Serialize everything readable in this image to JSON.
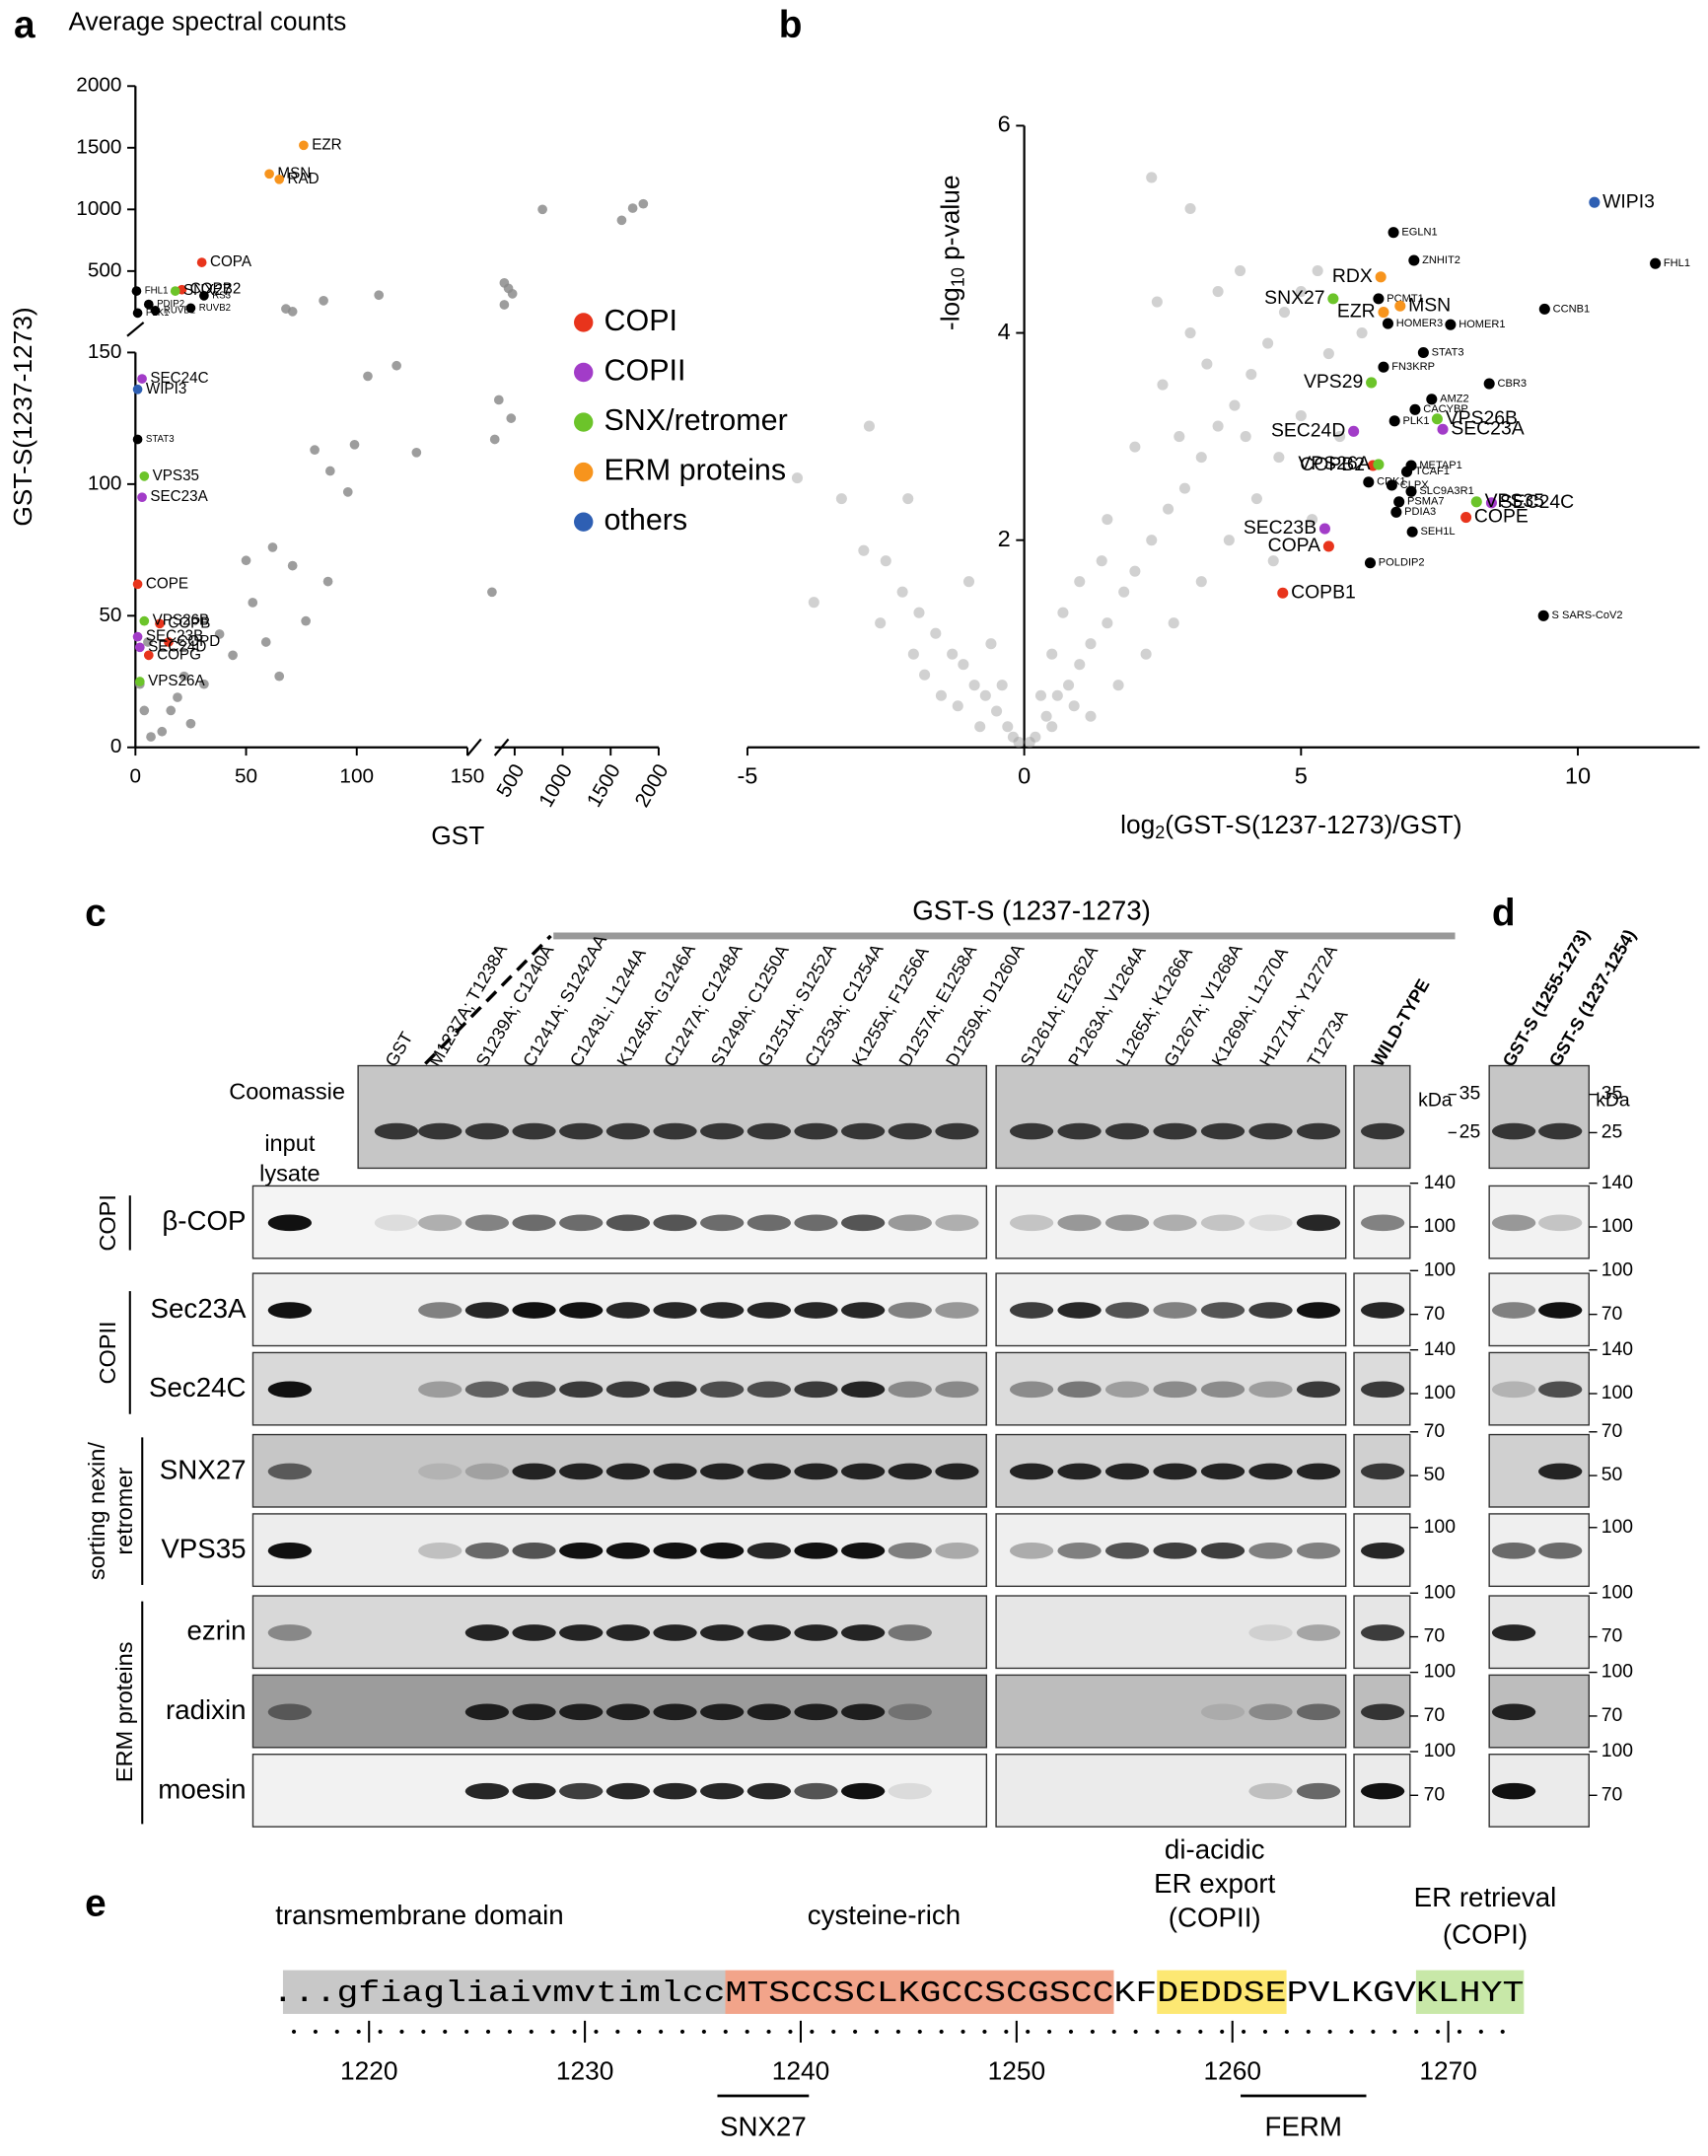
{
  "panel_letters": [
    "a",
    "b",
    "c",
    "d",
    "e"
  ],
  "chart_data": [
    {
      "type": "scatter",
      "title": "Average spectral counts",
      "xlabel": "GST",
      "ylabel": "GST-S(1237-1273)",
      "xlim": [
        0,
        2000
      ],
      "ylim": [
        0,
        2000
      ],
      "axis_break": 150,
      "xticks": [
        0,
        50,
        100,
        150,
        500,
        1000,
        1500,
        2000
      ],
      "yticks": [
        0,
        50,
        100,
        150,
        500,
        1000,
        1500,
        2000
      ],
      "legend": "right",
      "series": [
        {
          "color": "#8c8c8c",
          "x": [
            790,
            1615,
            1840,
            1730,
            392,
            435,
            477,
            392,
            68,
            71,
            85,
            110,
            118,
            335,
            463,
            293,
            264,
            105,
            81,
            127,
            99,
            88,
            62,
            53,
            65,
            44,
            38,
            31,
            19,
            25,
            12,
            7,
            16,
            50,
            71,
            96,
            59,
            77,
            87,
            22,
            5.6,
            4,
            2
          ],
          "values": [
            1000,
            912,
            1045,
            1010,
            404,
            360,
            316,
            227,
            194,
            172,
            260,
            305,
            145,
            132,
            125,
            117,
            59,
            141,
            113,
            112,
            115,
            105,
            76,
            55,
            27,
            35,
            43,
            24,
            19,
            9,
            6,
            4,
            14,
            71,
            69,
            97,
            40,
            48,
            63,
            27,
            40,
            14,
            24
          ]
        },
        {
          "color": "#000000",
          "labels": [
            "FHL1",
            "PDIP2",
            "PLK1",
            "RS3",
            "RUVB2",
            "RUVB1",
            "STAT3"
          ],
          "x": [
            0.5,
            6,
            1,
            31,
            25,
            9,
            1
          ],
          "values": [
            338,
            230,
            160,
            300,
            200,
            180,
            117
          ]
        },
        {
          "name": "COPI",
          "color": "#e8341c",
          "labels": [
            "COPA",
            "COPB2",
            "COPE",
            "COPB",
            "COPD",
            "COPG"
          ],
          "x": [
            30,
            21,
            1,
            11,
            15,
            6
          ],
          "values": [
            570,
            349,
            62,
            47,
            40,
            35
          ]
        },
        {
          "name": "COPII",
          "color": "#a23cc8",
          "labels": [
            "SEC24C",
            "SEC23A",
            "SEC23B",
            "SEC24D"
          ],
          "x": [
            3,
            3,
            1,
            2
          ],
          "values": [
            140,
            95,
            42,
            38
          ]
        },
        {
          "name": "SNX/retromer",
          "color": "#6cc42a",
          "labels": [
            "SNX27",
            "VPS35",
            "VPS26B",
            "VPS26A"
          ],
          "x": [
            18,
            4,
            4,
            2
          ],
          "values": [
            338,
            103,
            48,
            25
          ]
        },
        {
          "name": "ERM proteins",
          "color": "#f7941d",
          "labels": [
            "EZR",
            "MSN",
            "RAD"
          ],
          "x": [
            76,
            60.5,
            65
          ],
          "values": [
            1520,
            1288,
            1244
          ]
        },
        {
          "name": "others",
          "color": "#2e5fb3",
          "labels": [
            "WIPI3"
          ],
          "x": [
            1
          ],
          "values": [
            136
          ]
        }
      ]
    },
    {
      "type": "scatter",
      "xlabel": [
        "log",
        "2",
        "(GST-S(1237-1273)/GST)"
      ],
      "ylabel": [
        "-log",
        "10",
        " p-value"
      ],
      "xlim": [
        -5,
        12.2
      ],
      "ylim": [
        0,
        6
      ],
      "xticks": [
        -5,
        0,
        5,
        10
      ],
      "yticks": [
        2,
        4,
        6
      ],
      "series": [
        {
          "color": "#9a9a9a",
          "x": [
            -4.1,
            -3.3,
            -2.9,
            -2.5,
            -2.2,
            -1.9,
            -1.6,
            -1.3,
            -1.1,
            -0.9,
            -0.7,
            -0.5,
            -0.3,
            -0.2,
            -1.5,
            -2.0,
            -0.8,
            -1.2,
            -2.6,
            -1.8,
            -3.8,
            -2.1,
            -0.6,
            -0.4,
            -1.0,
            -2.8,
            0.2,
            0.4,
            0.6,
            0.8,
            1.0,
            1.2,
            1.5,
            1.8,
            2.0,
            2.3,
            2.6,
            2.9,
            3.2,
            3.5,
            3.8,
            4.1,
            4.4,
            4.7,
            5.0,
            5.3,
            2.3,
            3.0,
            1.2,
            1.7,
            2.2,
            2.7,
            3.2,
            3.7,
            4.2,
            4.6,
            5.0,
            1.0,
            1.5,
            2.0,
            2.5,
            3.0,
            3.5,
            0.5,
            0.7,
            0.3,
            5.5,
            4.0,
            3.3,
            2.8,
            6.1,
            5.7,
            5.2,
            4.5,
            1.4,
            0.9,
            0.5,
            0.1,
            -0.1,
            3.9,
            2.4
          ],
          "values": [
            2.6,
            2.4,
            1.9,
            1.8,
            1.5,
            1.3,
            1.1,
            0.9,
            0.8,
            0.6,
            0.5,
            0.35,
            0.2,
            0.1,
            0.5,
            0.9,
            0.2,
            0.4,
            1.2,
            0.7,
            1.4,
            2.4,
            1.0,
            0.6,
            1.6,
            3.1,
            0.1,
            0.3,
            0.5,
            0.6,
            0.8,
            1.0,
            1.2,
            1.5,
            1.7,
            2.0,
            2.3,
            2.5,
            2.8,
            3.1,
            3.3,
            3.6,
            3.9,
            4.2,
            4.4,
            4.6,
            5.5,
            5.2,
            0.3,
            0.6,
            0.9,
            1.2,
            1.6,
            2.0,
            2.4,
            2.8,
            3.2,
            1.6,
            2.2,
            2.9,
            3.5,
            4.0,
            4.4,
            0.9,
            1.3,
            0.5,
            3.8,
            3.0,
            3.7,
            3.0,
            4.0,
            3.0,
            2.2,
            1.8,
            1.8,
            0.4,
            0.2,
            0.05,
            0.05,
            4.6,
            4.3
          ]
        },
        {
          "color": "#000000",
          "labels": [
            "EGLN1",
            "ZNHIT2",
            "PCMT1",
            "HOMER3",
            "HOMER1",
            "STAT3",
            "FN3KRP",
            "CBR3",
            "AMZ2",
            "CACYBP",
            "PLK1",
            "METAP1",
            "TCAF1",
            "CDK1",
            "CLPX",
            "SLC9A3R1",
            "PSMA7",
            "PDIA3",
            "SEH1L",
            "POLDIP2",
            "FHL1",
            "CCNB1",
            "S SARS-CoV2"
          ],
          "x": [
            6.67,
            7.04,
            6.4,
            6.57,
            7.7,
            7.21,
            6.49,
            8.4,
            7.36,
            7.06,
            6.69,
            6.99,
            6.91,
            6.22,
            6.64,
            6.99,
            6.77,
            6.72,
            7.01,
            6.25,
            11.4,
            9.4,
            9.38
          ],
          "values": [
            4.97,
            4.7,
            4.33,
            4.09,
            4.08,
            3.81,
            3.67,
            3.51,
            3.36,
            3.26,
            3.15,
            2.72,
            2.66,
            2.56,
            2.53,
            2.47,
            2.37,
            2.27,
            2.08,
            1.78,
            4.67,
            4.23,
            1.27
          ]
        },
        {
          "color": "#e8341c",
          "labels": [
            "COPB2",
            "COPE",
            "COPA",
            "COPB1"
          ],
          "x": [
            6.3,
            7.98,
            5.5,
            4.67
          ],
          "values": [
            2.72,
            2.22,
            1.94,
            1.49
          ]
        },
        {
          "color": "#a23cc8",
          "labels": [
            "SEC24D",
            "SEC23A",
            "SEC24C",
            "SEC23B"
          ],
          "x": [
            5.95,
            7.56,
            8.44,
            5.43
          ],
          "values": [
            3.05,
            3.07,
            2.36,
            2.11
          ]
        },
        {
          "color": "#6cc42a",
          "labels": [
            "SNX27",
            "VPS29",
            "VPS26B",
            "VPS26A",
            "VPS35"
          ],
          "x": [
            5.58,
            6.27,
            7.46,
            6.4,
            8.17
          ],
          "values": [
            4.33,
            3.52,
            3.17,
            2.73,
            2.37
          ]
        },
        {
          "color": "#f7941d",
          "labels": [
            "RDX",
            "MSN",
            "EZR"
          ],
          "x": [
            6.44,
            6.79,
            6.49
          ],
          "values": [
            4.54,
            4.26,
            4.2
          ]
        },
        {
          "color": "#2e5fb3",
          "labels": [
            "WIPI3"
          ],
          "x": [
            10.3
          ],
          "values": [
            5.26
          ]
        }
      ]
    }
  ],
  "blots": {
    "header": "GST-S (1237-1273)",
    "lanes_left": [
      "GST",
      "M1237A; T1238A",
      "S1239A; C1240A",
      "C1241A; S1242AA",
      "C1243L; L1244A",
      "K1245A; G1246A",
      "C1247A; C1248A",
      "S1249A; C1250A",
      "G1251A; S1252A",
      "C1253A; C1254A",
      "K1255A; F1256A",
      "D1257A; E1258A",
      "D1259A; D1260A"
    ],
    "lanes_mid": [
      "S1261A; E1262A",
      "P1263A; V1264A",
      "L1265A; K1266A",
      "G1267A; V1268A",
      "K1269A; L1270A",
      "H1271A; Y1272A",
      "T1273A"
    ],
    "wt": "WILD-TYPE",
    "kda": "kDa",
    "coomassie": "Coomassie",
    "input": [
      "input",
      "lysate"
    ],
    "coomassie_markers": [
      35,
      25
    ],
    "rows": [
      {
        "label": "β-COP",
        "markers": [
          140,
          100
        ]
      },
      {
        "label": "Sec23A",
        "markers": [
          100,
          70
        ]
      },
      {
        "label": "Sec24C",
        "markers": [
          140,
          100
        ]
      },
      {
        "label": "SNX27",
        "markers": [
          70,
          50
        ]
      },
      {
        "label": "VPS35",
        "markers": [
          100
        ]
      },
      {
        "label": "ezrin",
        "markers": [
          100,
          70
        ]
      },
      {
        "label": "radixin",
        "markers": [
          100,
          70
        ]
      },
      {
        "label": "moesin",
        "markers": [
          100,
          70
        ]
      }
    ],
    "groups": [
      [
        "COPI"
      ],
      [
        "COPII"
      ],
      [
        "sorting nexin/",
        "retromer"
      ],
      [
        "ERM proteins"
      ]
    ],
    "panel_d": {
      "lanes": [
        "GST-S (1255-1273)",
        "GST-S (1237-1254)"
      ],
      "kda": "kDa"
    }
  },
  "sequence": {
    "domains": [
      [
        "transmembrane domain"
      ],
      [
        "cysteine-rich"
      ],
      [
        "di-acidic",
        "ER export",
        "(COPII)"
      ],
      [
        "ER retrieval",
        "(COPI)"
      ]
    ],
    "segments": [
      "...gfiagliaivmvtimlcc",
      "MTSCCSCLKGCCSCGSCC",
      "KF",
      "DEDDSE",
      "PVLKGV",
      "KLHYT"
    ],
    "positions": [
      1220,
      1230,
      1240,
      1250,
      1260,
      1270
    ],
    "motifs": [
      "SNX27",
      "FERM"
    ]
  }
}
